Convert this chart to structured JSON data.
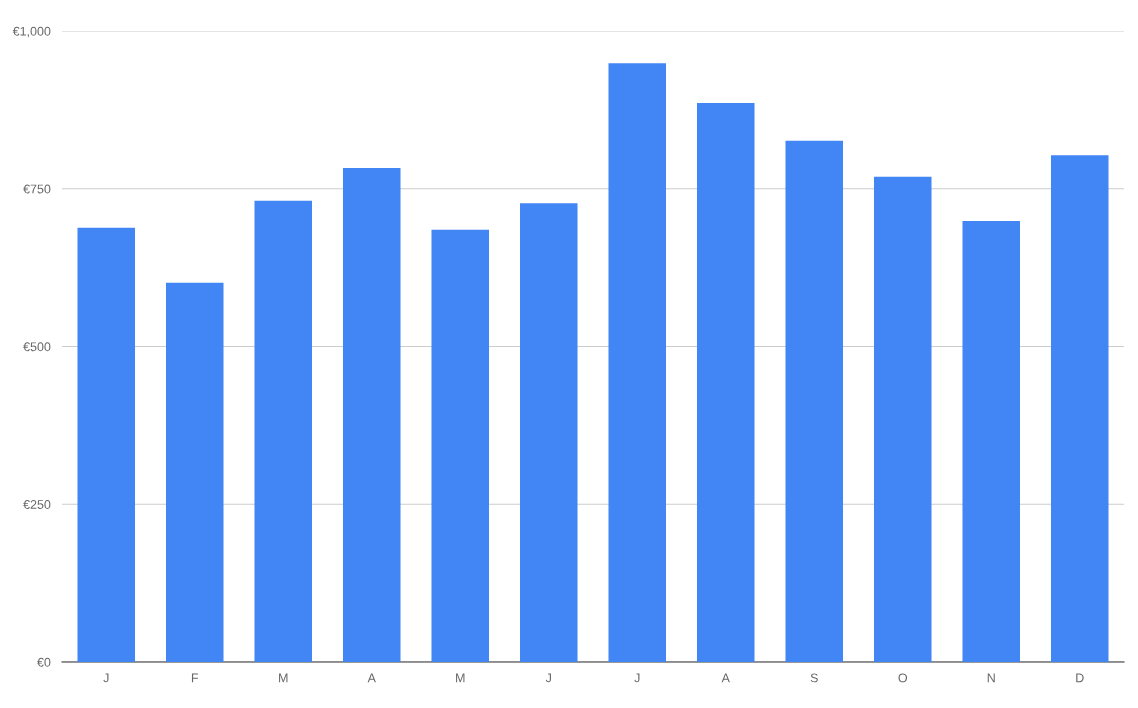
{
  "chart_data": {
    "type": "bar",
    "categories": [
      "J",
      "F",
      "M",
      "A",
      "M",
      "J",
      "J",
      "A",
      "S",
      "O",
      "N",
      "D"
    ],
    "values": [
      688,
      601,
      731,
      783,
      685,
      727,
      949,
      886,
      826,
      769,
      699,
      803
    ],
    "color": "#4285f4",
    "ylim": [
      0,
      1000
    ],
    "yticks": [
      {
        "value": 0,
        "label": "€0"
      },
      {
        "value": 250,
        "label": "€250"
      },
      {
        "value": 500,
        "label": "€500"
      },
      {
        "value": 750,
        "label": "€750"
      },
      {
        "value": 1000,
        "label": "€1,000"
      }
    ],
    "grid": "y"
  }
}
